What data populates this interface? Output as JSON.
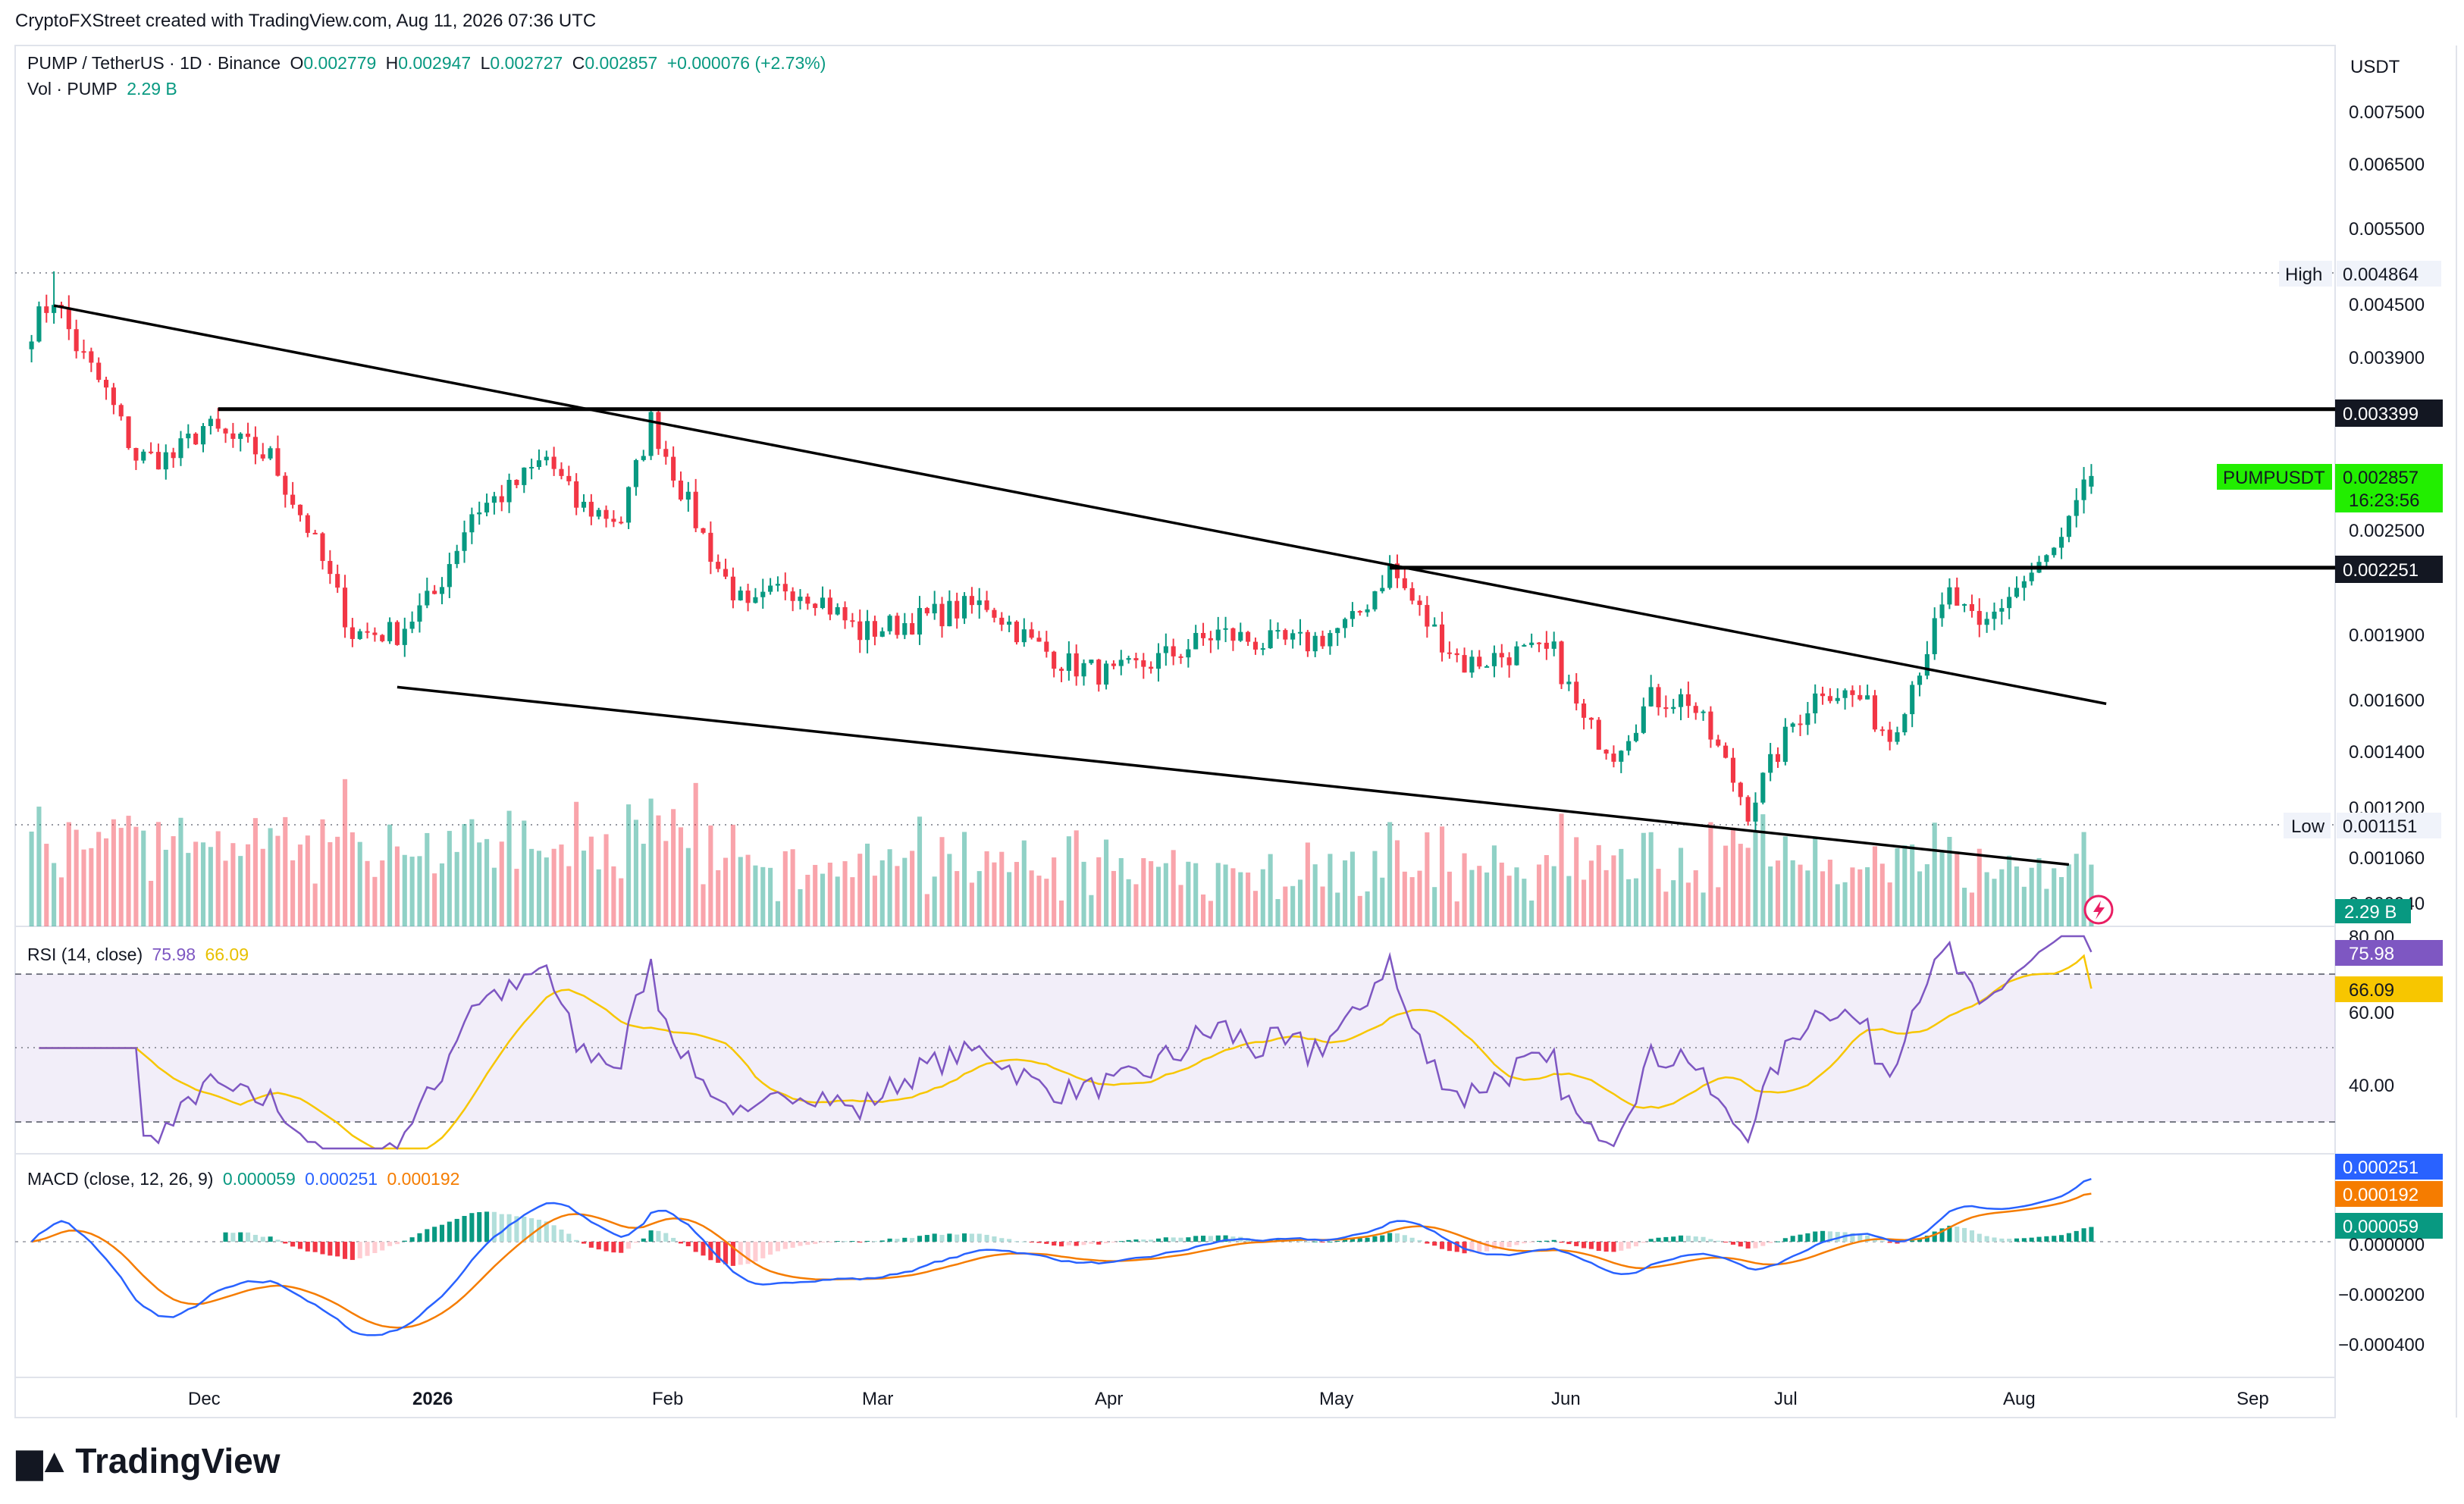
{
  "header": {
    "attribution": "CryptoFXStreet created with TradingView.com, Aug 11, 2026 07:36 UTC",
    "symbol": "PUMP / TetherUS · 1D · Binance",
    "o_label": "O",
    "o_value": "0.002779",
    "h_label": "H",
    "h_value": "0.002947",
    "l_label": "L",
    "l_value": "0.002727",
    "c_label": "C",
    "c_value": "0.002857",
    "change": "+0.000076 (+2.73%)",
    "vol_label": "Vol · PUMP",
    "vol_value": "2.29 B"
  },
  "price_axis": {
    "currency": "USDT",
    "ticks": [
      "0.007500",
      "0.006500",
      "0.005500",
      "0.004500",
      "0.003900",
      "0.002500",
      "0.001900",
      "0.001600",
      "0.001400",
      "0.001200",
      "0.001060",
      "0.000940"
    ],
    "high_label": "High",
    "high_value": "0.004864",
    "low_label": "Low",
    "low_value": "0.001151",
    "resistance_value": "0.003399",
    "support_value": "0.002251",
    "current_symbol": "PUMPUSDT",
    "current_value": "0.002857",
    "countdown": "16:23:56",
    "volume_value": "2.29 B"
  },
  "rsi": {
    "label": "RSI (14, close)",
    "value": "75.98",
    "ma_value": "66.09",
    "ticks": [
      "80.00",
      "60.00",
      "40.00"
    ]
  },
  "macd": {
    "label": "MACD (close, 12, 26, 9)",
    "hist_value": "0.000059",
    "macd_value": "0.000251",
    "signal_value": "0.000192",
    "ticks": [
      "0.000000",
      "−0.000200",
      "−0.000400"
    ]
  },
  "time_axis": [
    "Dec",
    "2026",
    "Feb",
    "Mar",
    "Apr",
    "May",
    "Jun",
    "Jul",
    "Aug",
    "Sep"
  ],
  "logo": "TradingView",
  "colors": {
    "up": "#089981",
    "down": "#f23645",
    "rsi": "#7e57c2",
    "rsi_ma": "#f7c600",
    "macd": "#2962ff",
    "signal": "#f57c00"
  },
  "chart_data": {
    "type": "candlestick",
    "anchors": [
      [
        "2025-11-08",
        0.0042
      ],
      [
        "2025-11-11",
        0.00455
      ],
      [
        "2025-11-14",
        0.004
      ],
      [
        "2025-11-18",
        0.00355
      ],
      [
        "2025-11-22",
        0.003
      ],
      [
        "2025-11-27",
        0.003
      ],
      [
        "2025-12-01",
        0.00325
      ],
      [
        "2025-12-06",
        0.0031
      ],
      [
        "2025-12-10",
        0.003
      ],
      [
        "2025-12-15",
        0.0025
      ],
      [
        "2025-12-21",
        0.0019
      ],
      [
        "2025-12-27",
        0.0019
      ],
      [
        "2026-01-01",
        0.0021
      ],
      [
        "2026-01-06",
        0.0026
      ],
      [
        "2026-01-11",
        0.00275
      ],
      [
        "2026-01-16",
        0.003
      ],
      [
        "2026-01-20",
        0.00265
      ],
      [
        "2026-01-26",
        0.00255
      ],
      [
        "2026-01-30",
        0.0033
      ],
      [
        "2026-02-04",
        0.00265
      ],
      [
        "2026-02-08",
        0.00225
      ],
      [
        "2026-02-12",
        0.002
      ],
      [
        "2026-02-17",
        0.00215
      ],
      [
        "2026-02-21",
        0.0021
      ],
      [
        "2026-02-27",
        0.0019
      ],
      [
        "2026-03-05",
        0.00195
      ],
      [
        "2026-03-10",
        0.002
      ],
      [
        "2026-03-16",
        0.00205
      ],
      [
        "2026-03-22",
        0.00185
      ],
      [
        "2026-03-27",
        0.00175
      ],
      [
        "2026-04-02",
        0.0017
      ],
      [
        "2026-04-10",
        0.0018
      ],
      [
        "2026-04-16",
        0.0019
      ],
      [
        "2026-04-22",
        0.00185
      ],
      [
        "2026-04-28",
        0.00185
      ],
      [
        "2026-05-04",
        0.00195
      ],
      [
        "2026-05-09",
        0.00225
      ],
      [
        "2026-05-14",
        0.00195
      ],
      [
        "2026-05-19",
        0.00175
      ],
      [
        "2026-05-25",
        0.0018
      ],
      [
        "2026-05-31",
        0.0018
      ],
      [
        "2026-06-04",
        0.0015
      ],
      [
        "2026-06-08",
        0.0014
      ],
      [
        "2026-06-13",
        0.0016
      ],
      [
        "2026-06-18",
        0.0016
      ],
      [
        "2026-06-22",
        0.0014
      ],
      [
        "2026-06-26",
        0.0012
      ],
      [
        "2026-07-02",
        0.0015
      ],
      [
        "2026-07-06",
        0.00165
      ],
      [
        "2026-07-11",
        0.0016
      ],
      [
        "2026-07-15",
        0.00145
      ],
      [
        "2026-07-19",
        0.00175
      ],
      [
        "2026-07-23",
        0.0021
      ],
      [
        "2026-07-27",
        0.0019
      ],
      [
        "2026-07-31",
        0.0021
      ],
      [
        "2026-08-04",
        0.00225
      ],
      [
        "2026-08-07",
        0.0024
      ],
      [
        "2026-08-11",
        0.00286
      ]
    ],
    "high": {
      "date": "2025-11-11",
      "price": 0.004864
    },
    "low": {
      "date": "2026-06-26",
      "price": 0.001151
    },
    "last": {
      "open": 0.002779,
      "high": 0.002947,
      "low": 0.002727,
      "close": 0.002857,
      "volume": "2.29 B"
    },
    "levels": [
      {
        "price": 0.003399,
        "from": "2025-12-03"
      },
      {
        "price": 0.002251,
        "from": "2026-05-09"
      }
    ],
    "trendlines": [
      {
        "from": [
          "2025-11-11",
          0.00445
        ],
        "to": [
          "2026-08-13",
          0.00158
        ]
      },
      {
        "from": [
          "2025-12-27",
          0.00165
        ],
        "to": [
          "2026-08-08",
          0.00104
        ]
      }
    ],
    "rsi_last": 75.98,
    "rsi_ma_last": 66.09,
    "macd_last": 0.000251,
    "signal_last": 0.000192,
    "hist_last": 5.9e-05
  }
}
